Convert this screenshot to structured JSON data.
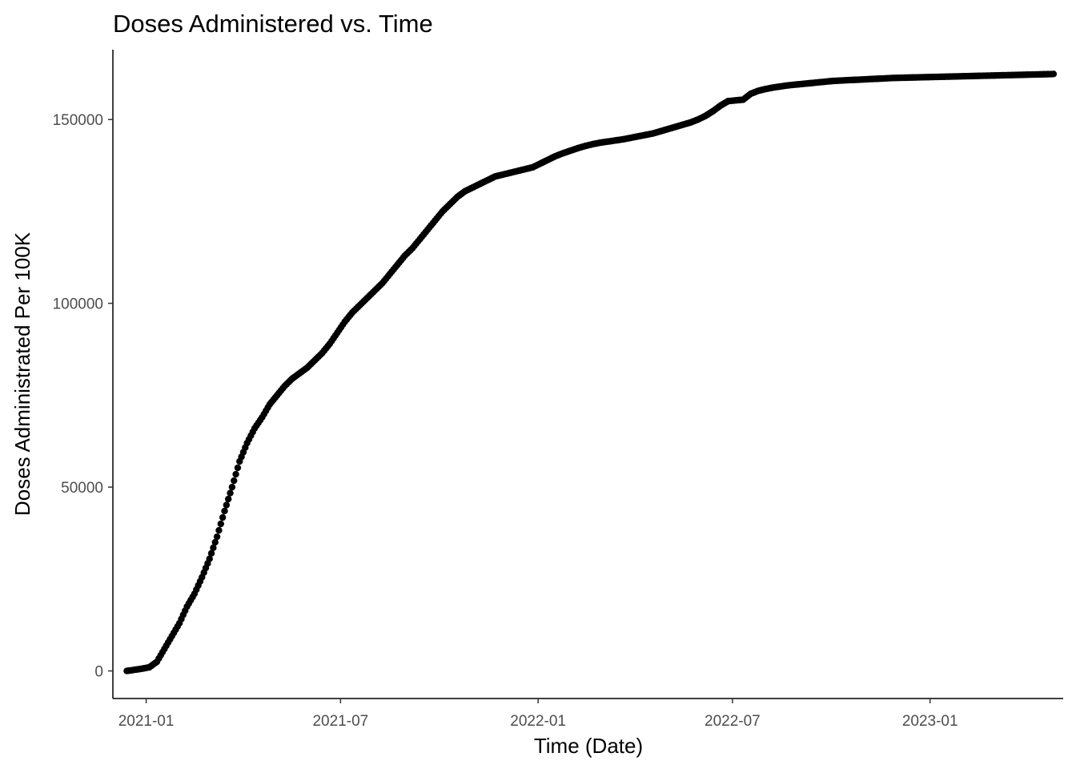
{
  "chart_data": {
    "type": "scatter",
    "title": "Doses Administered vs. Time",
    "xlabel": "Time (Date)",
    "ylabel": "Doses Administrated Per 100K",
    "x_ticks": [
      "2021-01",
      "2021-07",
      "2022-01",
      "2022-07",
      "2023-01"
    ],
    "y_ticks": [
      "0",
      "50000",
      "100000",
      "150000"
    ],
    "xlim": [
      "2020-12-01",
      "2023-05-05"
    ],
    "ylim": [
      -7500,
      169000
    ],
    "grid": false,
    "legend": "none",
    "point_color": "#000000",
    "series": [
      {
        "x": [
          "2020-12-14",
          "2020-12-21",
          "2020-12-28",
          "2021-01-04",
          "2021-01-11",
          "2021-01-18",
          "2021-01-25",
          "2021-02-01",
          "2021-02-08",
          "2021-02-15",
          "2021-02-22",
          "2021-03-01",
          "2021-03-08",
          "2021-03-15",
          "2021-03-22",
          "2021-03-29",
          "2021-04-05",
          "2021-04-12",
          "2021-04-19",
          "2021-04-26",
          "2021-05-03",
          "2021-05-10",
          "2021-05-17",
          "2021-05-24",
          "2021-05-31",
          "2021-06-07",
          "2021-06-14",
          "2021-06-21",
          "2021-06-28",
          "2021-07-05",
          "2021-07-12",
          "2021-07-19",
          "2021-07-26",
          "2021-08-02",
          "2021-08-09",
          "2021-08-16",
          "2021-08-23",
          "2021-08-30",
          "2021-09-06",
          "2021-09-13",
          "2021-09-20",
          "2021-09-27",
          "2021-10-04",
          "2021-10-11",
          "2021-10-18",
          "2021-10-25",
          "2021-11-01",
          "2021-11-08",
          "2021-11-15",
          "2021-11-22",
          "2021-11-29",
          "2021-12-06",
          "2021-12-13",
          "2021-12-20",
          "2021-12-27",
          "2022-01-03",
          "2022-01-10",
          "2022-01-17",
          "2022-01-24",
          "2022-01-31",
          "2022-02-07",
          "2022-02-14",
          "2022-02-21",
          "2022-02-28",
          "2022-03-07",
          "2022-03-14",
          "2022-03-21",
          "2022-03-28",
          "2022-04-04",
          "2022-04-11",
          "2022-04-18",
          "2022-04-25",
          "2022-05-02",
          "2022-05-09",
          "2022-05-16",
          "2022-05-23",
          "2022-05-30",
          "2022-06-06",
          "2022-06-13",
          "2022-06-20",
          "2022-06-27",
          "2022-07-04",
          "2022-07-11",
          "2022-07-18",
          "2022-07-25",
          "2022-08-01",
          "2022-08-08",
          "2022-08-15",
          "2022-08-22",
          "2022-08-29",
          "2022-09-05",
          "2022-09-12",
          "2022-09-19",
          "2022-09-26",
          "2022-10-03",
          "2022-10-10",
          "2022-10-17",
          "2022-10-24",
          "2022-10-31",
          "2022-11-07",
          "2022-11-14",
          "2022-11-21",
          "2022-11-28",
          "2022-12-05",
          "2022-12-12",
          "2022-12-19",
          "2022-12-26",
          "2023-01-02",
          "2023-01-09",
          "2023-01-16",
          "2023-01-23",
          "2023-01-30",
          "2023-02-06",
          "2023-02-13",
          "2023-02-20",
          "2023-02-27",
          "2023-03-06",
          "2023-03-13",
          "2023-03-20",
          "2023-03-27",
          "2023-04-03",
          "2023-04-10",
          "2023-04-17",
          "2023-04-24",
          "2023-04-26"
        ],
        "y": [
          0,
          300,
          600,
          1000,
          2500,
          6000,
          9500,
          13000,
          17500,
          21000,
          25500,
          30500,
          36500,
          43500,
          50000,
          57000,
          62000,
          66000,
          69000,
          72500,
          75000,
          77500,
          79500,
          81000,
          82500,
          84500,
          86500,
          89000,
          92000,
          95000,
          97500,
          99500,
          101500,
          103500,
          105500,
          108000,
          110500,
          113000,
          115000,
          117500,
          120000,
          122500,
          125000,
          127000,
          129000,
          130500,
          131500,
          132500,
          133500,
          134500,
          135000,
          135500,
          136000,
          136500,
          137000,
          138000,
          139000,
          140000,
          140800,
          141500,
          142200,
          142800,
          143300,
          143700,
          144000,
          144300,
          144600,
          145000,
          145400,
          145800,
          146200,
          146800,
          147400,
          148000,
          148600,
          149200,
          150000,
          151000,
          152300,
          153800,
          155000,
          155200,
          155400,
          157000,
          157800,
          158300,
          158700,
          159000,
          159300,
          159500,
          159700,
          159900,
          160100,
          160300,
          160500,
          160600,
          160700,
          160800,
          160900,
          161000,
          161100,
          161200,
          161300,
          161350,
          161400,
          161450,
          161500,
          161550,
          161600,
          161650,
          161700,
          161750,
          161800,
          161850,
          161900,
          161950,
          162000,
          162050,
          162100,
          162150,
          162200,
          162250,
          162300,
          162350,
          162400
        ]
      }
    ]
  }
}
